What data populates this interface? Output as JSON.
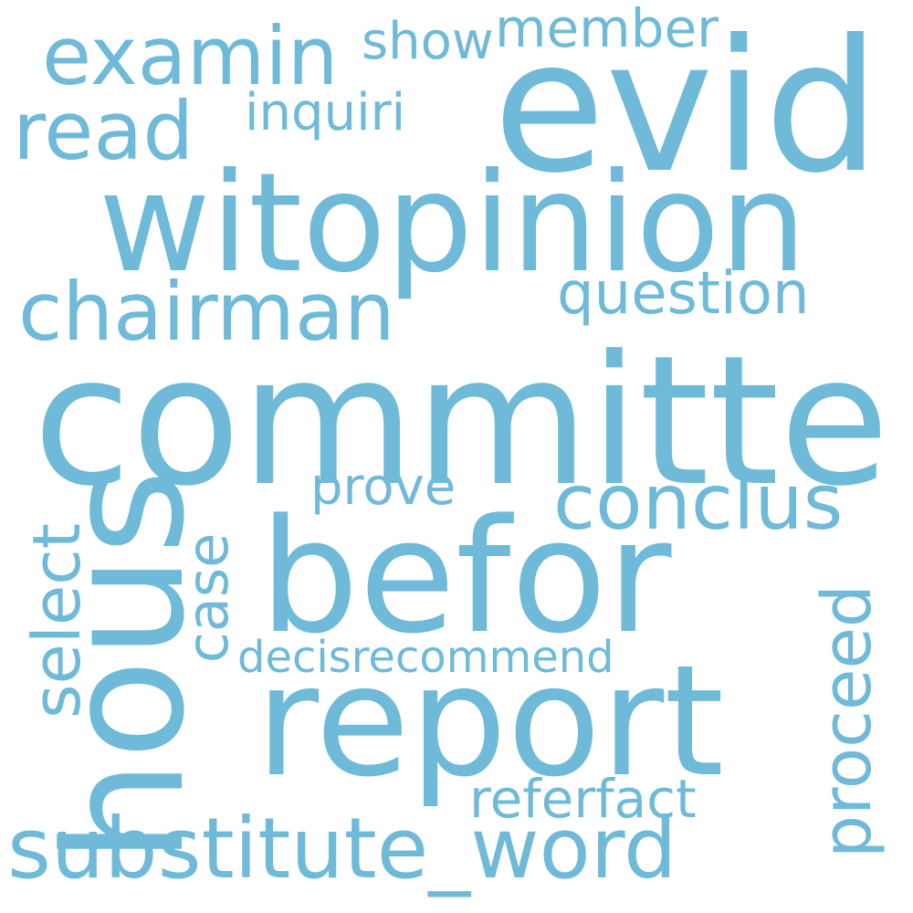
{
  "word_color": "#6EBAD8",
  "background_color": "#FFFFFF",
  "words": [
    {
      "key": "committe",
      "text": "committe"
    },
    {
      "key": "evid",
      "text": "evid"
    },
    {
      "key": "witopinion",
      "text": "witopinion"
    },
    {
      "key": "befor",
      "text": "befor"
    },
    {
      "key": "report",
      "text": "report"
    },
    {
      "key": "hous",
      "text": "hous"
    },
    {
      "key": "substitute_word",
      "text": "substitute_word"
    },
    {
      "key": "chairman",
      "text": "chairman"
    },
    {
      "key": "examin",
      "text": "examin"
    },
    {
      "key": "conclus",
      "text": "conclus"
    },
    {
      "key": "read",
      "text": "read"
    },
    {
      "key": "proceed",
      "text": "proceed"
    },
    {
      "key": "select",
      "text": "select"
    },
    {
      "key": "question",
      "text": "question"
    },
    {
      "key": "case",
      "text": "case"
    },
    {
      "key": "member",
      "text": "member"
    },
    {
      "key": "show",
      "text": "show"
    },
    {
      "key": "inquiri",
      "text": "inquiri"
    },
    {
      "key": "decisrecommend",
      "text": "decisrecommend"
    },
    {
      "key": "referfact",
      "text": "referfact"
    },
    {
      "key": "prove",
      "text": "prove"
    }
  ]
}
